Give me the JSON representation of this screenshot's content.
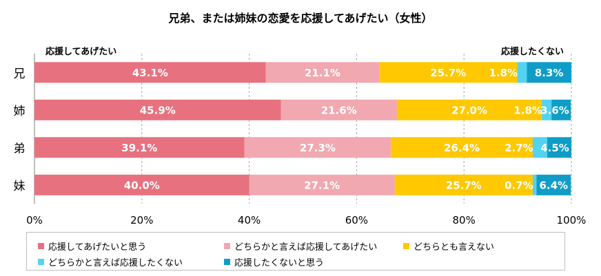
{
  "chart_data": {
    "type": "bar",
    "orientation": "horizontal",
    "stacked": true,
    "title": "兄弟、または姉妹の恋愛を応援してあげたい（女性）",
    "left_end_label": "応援してあげたい",
    "right_end_label": "応援したくない",
    "categories": [
      "兄",
      "姉",
      "弟",
      "妹"
    ],
    "series": [
      {
        "name": "応援してあげたいと思う",
        "color": "#e8717f",
        "values": [
          43.1,
          45.9,
          39.1,
          40.0
        ],
        "labels": [
          "43.1%",
          "45.9%",
          "39.1%",
          "40.0%"
        ]
      },
      {
        "name": "どちらかと言えば応援してあげたい",
        "color": "#f1a8b0",
        "values": [
          21.1,
          21.6,
          27.3,
          27.1
        ],
        "labels": [
          "21.1%",
          "21.6%",
          "27.3%",
          "27.1%"
        ]
      },
      {
        "name": "どちらとも言えない",
        "color": "#ffc800",
        "values": [
          25.7,
          27.0,
          26.4,
          25.7
        ],
        "labels": [
          "25.7%",
          "27.0%",
          "26.4%",
          "25.7%"
        ]
      },
      {
        "name": "どちらかと言えば応援したくない",
        "color": "#52d3f2",
        "values": [
          1.8,
          1.8,
          2.7,
          0.7
        ],
        "labels": [
          "1.8%",
          "1.8%",
          "2.7%",
          "0.7%"
        ]
      },
      {
        "name": "応援したくないと思う",
        "color": "#0f9dc8",
        "values": [
          8.3,
          3.6,
          4.5,
          6.4
        ],
        "labels": [
          "8.3%",
          "3.6%",
          "4.5%",
          "6.4%"
        ]
      }
    ],
    "x_ticks": [
      "0%",
      "20%",
      "40%",
      "60%",
      "80%",
      "100%"
    ],
    "xlim": [
      0,
      100
    ],
    "grid": true,
    "legend": "bottom"
  }
}
